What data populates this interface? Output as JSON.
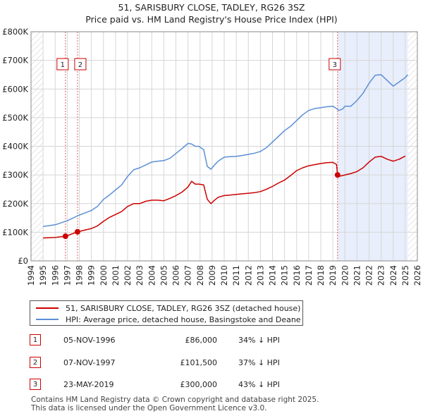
{
  "chart_data": {
    "type": "line",
    "title": "51, SARISBURY CLOSE, TADLEY, RG26 3SZ",
    "subtitle": "Price paid vs. HM Land Registry's House Price Index (HPI)",
    "xlim": [
      1994,
      2026
    ],
    "ylim": [
      0,
      800000
    ],
    "x_ticks": [
      1994,
      1995,
      1996,
      1997,
      1998,
      1999,
      2000,
      2001,
      2002,
      2003,
      2004,
      2005,
      2006,
      2007,
      2008,
      2009,
      2010,
      2011,
      2012,
      2013,
      2014,
      2015,
      2016,
      2017,
      2018,
      2019,
      2020,
      2021,
      2022,
      2023,
      2024,
      2025,
      2026
    ],
    "y_ticks": [
      {
        "value": 0,
        "label": "£0"
      },
      {
        "value": 100000,
        "label": "£100K"
      },
      {
        "value": 200000,
        "label": "£200K"
      },
      {
        "value": 300000,
        "label": "£300K"
      },
      {
        "value": 400000,
        "label": "£400K"
      },
      {
        "value": 500000,
        "label": "£500K"
      },
      {
        "value": 600000,
        "label": "£600K"
      },
      {
        "value": 700000,
        "label": "£700K"
      },
      {
        "value": 800000,
        "label": "£800K"
      }
    ],
    "data_start": 1995.0,
    "data_end": 2025.2,
    "grid": true,
    "colors": {
      "property": "#cc0000",
      "hpi": "#5b8fd4",
      "shade": "#e8eefb",
      "vline": "#e06060"
    },
    "series": [
      {
        "name": "51, SARISBURY CLOSE, TADLEY, RG26 3SZ (detached house)",
        "x": [
          1995.0,
          1996.0,
          1996.85,
          1997.2,
          1997.85,
          1998.5,
          1999.0,
          1999.5,
          2000.0,
          2000.5,
          2001.0,
          2001.5,
          2002.0,
          2002.5,
          2003.0,
          2003.5,
          2004.0,
          2004.5,
          2005.0,
          2005.5,
          2006.0,
          2006.5,
          2007.0,
          2007.3,
          2007.6,
          2007.9,
          2008.3,
          2008.6,
          2008.9,
          2009.2,
          2009.5,
          2010.0,
          2010.5,
          2011.0,
          2011.5,
          2012.0,
          2012.5,
          2013.0,
          2013.5,
          2014.0,
          2014.5,
          2015.0,
          2015.5,
          2016.0,
          2016.5,
          2017.0,
          2017.5,
          2018.0,
          2018.5,
          2019.0,
          2019.3,
          2019.39,
          2019.6,
          2020.0,
          2020.5,
          2021.0,
          2021.5,
          2022.0,
          2022.5,
          2023.0,
          2023.5,
          2024.0,
          2024.5,
          2025.0
        ],
        "values": [
          80000,
          82000,
          86000,
          91000,
          101500,
          108000,
          113000,
          122000,
          138000,
          152000,
          162000,
          172000,
          190000,
          200000,
          200000,
          208000,
          212000,
          212000,
          210000,
          218000,
          228000,
          240000,
          258000,
          278000,
          268000,
          268000,
          265000,
          215000,
          200000,
          212000,
          222000,
          228000,
          230000,
          232000,
          234000,
          236000,
          238000,
          242000,
          250000,
          260000,
          272000,
          282000,
          298000,
          315000,
          325000,
          332000,
          336000,
          340000,
          343000,
          344000,
          337000,
          300000,
          296000,
          300000,
          305000,
          312000,
          325000,
          345000,
          362000,
          365000,
          355000,
          348000,
          355000,
          366000
        ]
      },
      {
        "name": "HPI: Average price, detached house, Basingstoke and Deane",
        "x": [
          1995.0,
          1996.0,
          1997.0,
          1998.0,
          1998.5,
          1999.0,
          1999.5,
          2000.0,
          2000.5,
          2001.0,
          2001.5,
          2002.0,
          2002.5,
          2003.0,
          2003.5,
          2004.0,
          2004.5,
          2005.0,
          2005.5,
          2006.0,
          2006.5,
          2007.0,
          2007.3,
          2007.6,
          2007.9,
          2008.3,
          2008.6,
          2008.9,
          2009.2,
          2009.5,
          2010.0,
          2010.5,
          2011.0,
          2011.5,
          2012.0,
          2012.5,
          2013.0,
          2013.5,
          2014.0,
          2014.5,
          2015.0,
          2015.5,
          2016.0,
          2016.5,
          2017.0,
          2017.5,
          2018.0,
          2018.5,
          2019.0,
          2019.2,
          2019.5,
          2019.8,
          2020.0,
          2020.5,
          2021.0,
          2021.5,
          2022.0,
          2022.5,
          2023.0,
          2023.5,
          2024.0,
          2024.5,
          2025.0,
          2025.2
        ],
        "values": [
          120000,
          126000,
          140000,
          160000,
          168000,
          176000,
          190000,
          215000,
          230000,
          248000,
          265000,
          295000,
          318000,
          325000,
          335000,
          345000,
          348000,
          350000,
          358000,
          375000,
          392000,
          410000,
          408000,
          400000,
          400000,
          388000,
          330000,
          320000,
          335000,
          348000,
          362000,
          364000,
          365000,
          368000,
          372000,
          376000,
          382000,
          395000,
          415000,
          435000,
          455000,
          470000,
          490000,
          510000,
          525000,
          532000,
          535000,
          538000,
          540000,
          535000,
          525000,
          530000,
          540000,
          540000,
          560000,
          585000,
          620000,
          648000,
          650000,
          630000,
          610000,
          625000,
          640000,
          650000
        ]
      }
    ],
    "sales": [
      {
        "marker": "1",
        "x": 1996.85,
        "value": 86000,
        "date": "05-NOV-1996",
        "price": "£86,000",
        "hpi": "34% ↓ HPI"
      },
      {
        "marker": "2",
        "x": 1997.85,
        "value": 101500,
        "date": "07-NOV-1997",
        "price": "£101,500",
        "hpi": "37% ↓ HPI"
      },
      {
        "marker": "3",
        "x": 2019.39,
        "value": 300000,
        "date": "23-MAY-2019",
        "price": "£300,000",
        "hpi": "43% ↓ HPI"
      }
    ]
  },
  "legend": {
    "property_label": "51, SARISBURY CLOSE, TADLEY, RG26 3SZ (detached house)",
    "hpi_label": "HPI: Average price, detached house, Basingstoke and Deane"
  },
  "footer": {
    "line1": "Contains HM Land Registry data © Crown copyright and database right 2025.",
    "line2": "This data is licensed under the Open Government Licence v3.0."
  }
}
